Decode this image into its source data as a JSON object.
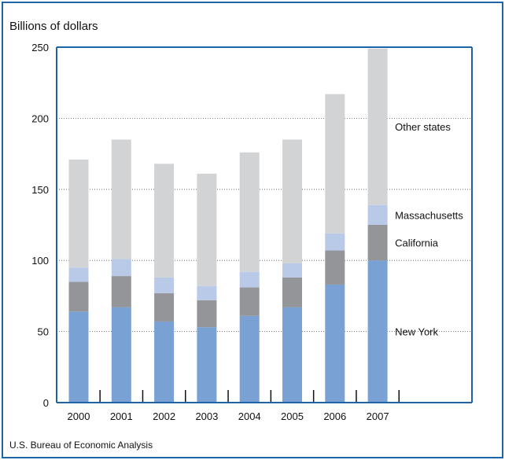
{
  "chart_data": {
    "type": "bar",
    "stacked": true,
    "ylabel": "Billions of dollars",
    "source": "U.S. Bureau of Economic Analysis",
    "categories": [
      "2000",
      "2001",
      "2002",
      "2003",
      "2004",
      "2005",
      "2006",
      "2007"
    ],
    "ylim": [
      0,
      250
    ],
    "yticks": [
      "0",
      "50",
      "100",
      "150",
      "200",
      "250"
    ],
    "grid": true,
    "series": [
      {
        "name": "New York",
        "color": "#7aa1d4",
        "values": [
          64,
          67,
          57,
          53,
          61,
          67,
          83,
          100
        ]
      },
      {
        "name": "California",
        "color": "#939598",
        "values": [
          21,
          22,
          20,
          19,
          20,
          21,
          24,
          25
        ]
      },
      {
        "name": "Massachusetts",
        "color": "#b9c9e8",
        "values": [
          10,
          12,
          11,
          10,
          11,
          10,
          12,
          14
        ]
      },
      {
        "name": "Other states",
        "color": "#d1d3d4",
        "values": [
          76,
          84,
          80,
          79,
          84,
          87,
          98,
          110
        ]
      }
    ]
  },
  "colors": {
    "frame": "#1f64a8",
    "axis": "#1f64a8"
  }
}
